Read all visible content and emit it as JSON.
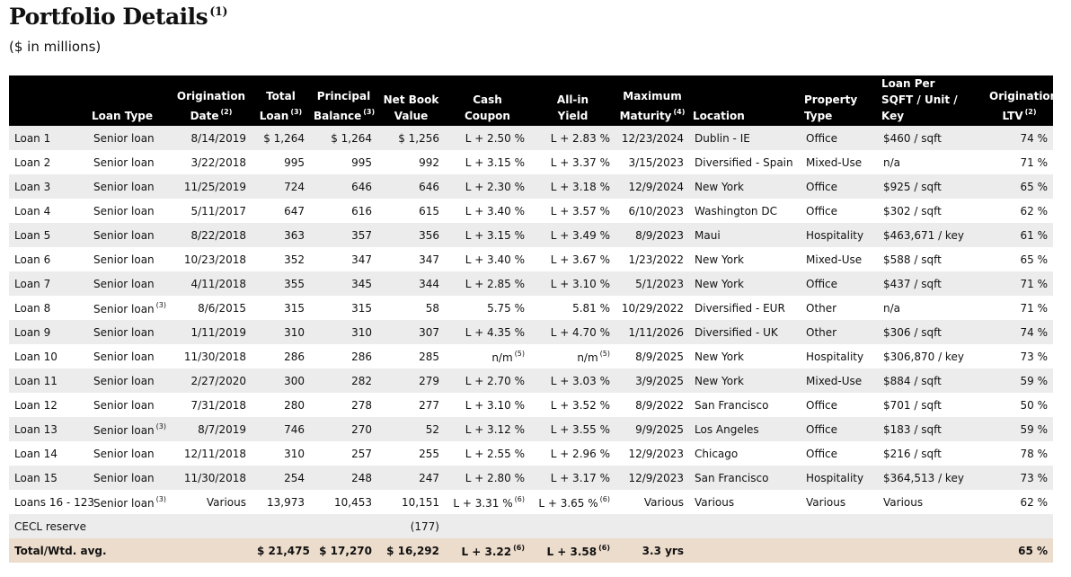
{
  "header": {
    "title": "Portfolio Details",
    "title_note": "(1)",
    "subtitle": "($ in millions)"
  },
  "table": {
    "columns": [
      {
        "lines": []
      },
      {
        "lines": [
          "Loan Type"
        ]
      },
      {
        "lines": [
          "Origination",
          "Date"
        ],
        "note": "(2)"
      },
      {
        "lines": [
          "Total",
          "Loan"
        ],
        "note": "(3)"
      },
      {
        "lines": [
          "Principal",
          "Balance"
        ],
        "note": "(3)"
      },
      {
        "lines": [
          "Net Book",
          "Value"
        ]
      },
      {
        "lines": [
          "Cash",
          "Coupon"
        ]
      },
      {
        "lines": [
          "All-in",
          "Yield"
        ]
      },
      {
        "lines": [
          "Maximum",
          "Maturity"
        ],
        "note": "(4)"
      },
      {
        "lines": [
          "Location"
        ]
      },
      {
        "lines": [
          "Property",
          "Type"
        ]
      },
      {
        "lines": [
          "Loan Per",
          "SQFT / Unit / Key"
        ]
      },
      {
        "lines": [
          "Origination",
          "LTV"
        ],
        "note": "(2)"
      }
    ],
    "rows": [
      [
        "Loan 1",
        "Senior loan",
        "8/14/2019",
        "$ 1,264",
        "$ 1,264",
        "$ 1,256",
        "L + 2.50 %",
        "L + 2.83 %",
        "12/23/2024",
        "Dublin - IE",
        "Office",
        "$460 / sqft",
        "74 %"
      ],
      [
        "Loan 2",
        "Senior loan",
        "3/22/2018",
        "995",
        "995",
        "992",
        "L + 3.15 %",
        "L + 3.37 %",
        "3/15/2023",
        "Diversified - Spain",
        "Mixed-Use",
        "n/a",
        "71 %"
      ],
      [
        "Loan 3",
        "Senior loan",
        "11/25/2019",
        "724",
        "646",
        "646",
        "L + 2.30 %",
        "L + 3.18 %",
        "12/9/2024",
        "New York",
        "Office",
        "$925 / sqft",
        "65 %"
      ],
      [
        "Loan 4",
        "Senior loan",
        "5/11/2017",
        "647",
        "616",
        "615",
        "L + 3.40 %",
        "L + 3.57 %",
        "6/10/2023",
        "Washington DC",
        "Office",
        "$302 / sqft",
        "62 %"
      ],
      [
        "Loan 5",
        "Senior loan",
        "8/22/2018",
        "363",
        "357",
        "356",
        "L + 3.15 %",
        "L + 3.49 %",
        "8/9/2023",
        "Maui",
        "Hospitality",
        "$463,671 / key",
        "61 %"
      ],
      [
        "Loan 6",
        "Senior loan",
        "10/23/2018",
        "352",
        "347",
        "347",
        "L + 3.40 %",
        "L + 3.67 %",
        "1/23/2022",
        "New York",
        "Mixed-Use",
        "$588 / sqft",
        "65 %"
      ],
      [
        "Loan 7",
        "Senior loan",
        "4/11/2018",
        "355",
        "345",
        "344",
        "L + 2.85 %",
        "L + 3.10 %",
        "5/1/2023",
        "New York",
        "Office",
        "$437 / sqft",
        "71 %"
      ],
      [
        "Loan 8",
        {
          "text": "Senior loan",
          "note": "(3)"
        },
        "8/6/2015",
        "315",
        "315",
        "58",
        "5.75 %",
        "5.81 %",
        "10/29/2022",
        "Diversified - EUR",
        "Other",
        "n/a",
        "71 %"
      ],
      [
        "Loan 9",
        "Senior loan",
        "1/11/2019",
        "310",
        "310",
        "307",
        "L + 4.35 %",
        "L + 4.70 %",
        "1/11/2026",
        "Diversified - UK",
        "Other",
        "$306 / sqft",
        "74 %"
      ],
      [
        "Loan 10",
        "Senior loan",
        "11/30/2018",
        "286",
        "286",
        "285",
        {
          "text": "n/m",
          "note": "(5)"
        },
        {
          "text": "n/m",
          "note": "(5)"
        },
        "8/9/2025",
        "New York",
        "Hospitality",
        "$306,870 / key",
        "73 %"
      ],
      [
        "Loan 11",
        "Senior loan",
        "2/27/2020",
        "300",
        "282",
        "279",
        "L + 2.70 %",
        "L + 3.03 %",
        "3/9/2025",
        "New York",
        "Mixed-Use",
        "$884 / sqft",
        "59 %"
      ],
      [
        "Loan 12",
        "Senior loan",
        "7/31/2018",
        "280",
        "278",
        "277",
        "L + 3.10 %",
        "L + 3.52 %",
        "8/9/2022",
        "San Francisco",
        "Office",
        "$701 / sqft",
        "50 %"
      ],
      [
        "Loan 13",
        {
          "text": "Senior loan",
          "note": "(3)"
        },
        "8/7/2019",
        "746",
        "270",
        "52",
        "L + 3.12 %",
        "L + 3.55 %",
        "9/9/2025",
        "Los Angeles",
        "Office",
        "$183 / sqft",
        "59 %"
      ],
      [
        "Loan 14",
        "Senior loan",
        "12/11/2018",
        "310",
        "257",
        "255",
        "L + 2.55 %",
        "L + 2.96 %",
        "12/9/2023",
        "Chicago",
        "Office",
        "$216 / sqft",
        "78 %"
      ],
      [
        "Loan 15",
        "Senior loan",
        "11/30/2018",
        "254",
        "248",
        "247",
        "L + 2.80 %",
        "L + 3.17 %",
        "12/9/2023",
        "San Francisco",
        "Hospitality",
        "$364,513 / key",
        "73 %"
      ],
      [
        "Loans 16 - 123",
        {
          "text": "Senior loan",
          "note": "(3)"
        },
        "Various",
        "13,973",
        "10,453",
        "10,151",
        {
          "text": "L + 3.31 %",
          "note": "(6)"
        },
        {
          "text": "L + 3.65 %",
          "note": "(6)"
        },
        "Various",
        "Various",
        "Various",
        "Various",
        "62 %"
      ],
      [
        "CECL reserve",
        null,
        null,
        null,
        null,
        "(177)",
        null,
        null,
        null,
        null,
        null,
        null,
        null
      ]
    ],
    "total": [
      "Total/Wtd. avg.",
      null,
      null,
      "$ 21,475",
      "$ 17,270",
      "$ 16,292",
      {
        "text": "L + 3.22",
        "note": "(6)"
      },
      {
        "text": "L + 3.58",
        "note": "(6)"
      },
      "3.3 yrs",
      null,
      null,
      null,
      "65 %"
    ]
  }
}
